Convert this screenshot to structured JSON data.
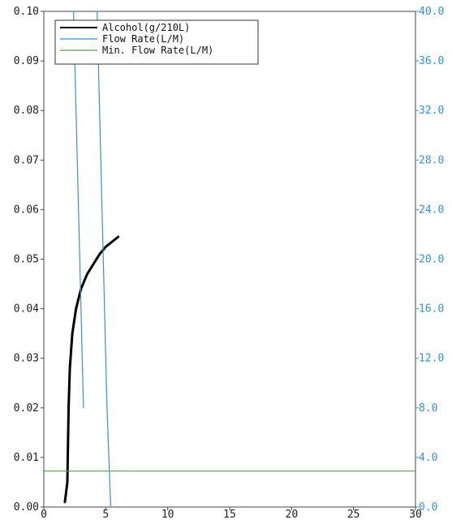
{
  "chart_data": {
    "type": "line",
    "title": "",
    "xlabel": "",
    "ylabel": "",
    "y2label": "",
    "xlim": [
      0,
      30
    ],
    "ylim": [
      0,
      0.1
    ],
    "y2lim": [
      0,
      40
    ],
    "grid": true,
    "legend_position": "top-left",
    "x_ticks": [
      "0",
      "5",
      "10",
      "15",
      "20",
      "25",
      "30"
    ],
    "y_ticks": [
      "0.00",
      "0.01",
      "0.02",
      "0.03",
      "0.04",
      "0.05",
      "0.06",
      "0.07",
      "0.08",
      "0.09",
      "0.10"
    ],
    "y2_ticks": [
      "0.0",
      "4.0",
      "8.0",
      "12.0",
      "16.0",
      "20.0",
      "24.0",
      "28.0",
      "32.0",
      "36.0",
      "40.0"
    ],
    "series": [
      {
        "name": "Alcohol(g/210L)",
        "axis": "left",
        "color": "#000000",
        "x": [
          1.7,
          1.9,
          2.0,
          2.1,
          2.3,
          2.6,
          3.0,
          3.5,
          4.0,
          4.5,
          5.0,
          5.5,
          6.0
        ],
        "y": [
          0.001,
          0.005,
          0.02,
          0.028,
          0.035,
          0.04,
          0.044,
          0.047,
          0.049,
          0.051,
          0.0525,
          0.0535,
          0.0545
        ]
      },
      {
        "name": "Flow Rate(L/M)",
        "axis": "right",
        "color": "#3b8fd0",
        "x": [
          2.4,
          2.5,
          2.7,
          2.9,
          3.1,
          3.2,
          4.3,
          4.4,
          4.6,
          4.9,
          5.1,
          5.4
        ],
        "y": [
          40,
          36,
          28,
          20,
          12,
          8,
          40,
          36,
          28,
          16,
          8,
          0
        ]
      },
      {
        "name": "Min. Flow Rate(L/M)",
        "axis": "right",
        "color": "#5a9e4e",
        "x": [
          0,
          30
        ],
        "y": [
          2.9,
          2.9
        ]
      }
    ]
  }
}
